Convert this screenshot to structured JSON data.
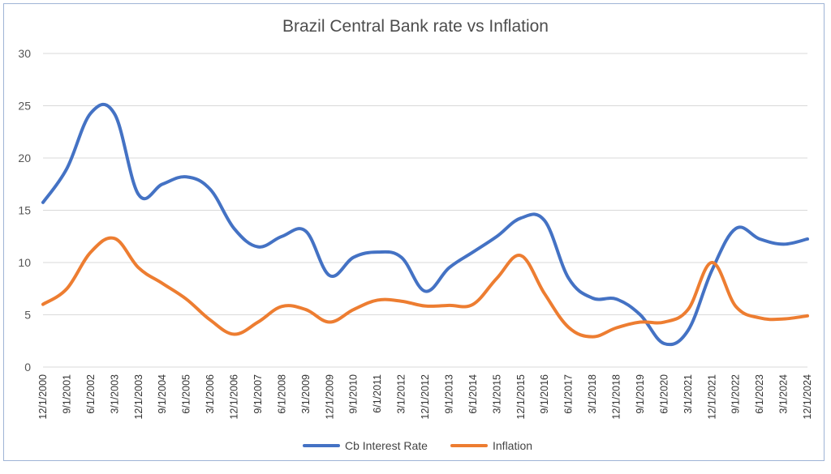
{
  "chart_data": {
    "type": "line",
    "title": "Brazil Central Bank rate vs Inflation",
    "xlabel": "",
    "ylabel": "",
    "ylim": [
      0,
      30
    ],
    "yticks": [
      0,
      5,
      10,
      15,
      20,
      25,
      30
    ],
    "grid": "horizontal",
    "legend": "bottom",
    "categories": [
      "12/1/2000",
      "9/1/2001",
      "6/1/2002",
      "3/1/2003",
      "12/1/2003",
      "9/1/2004",
      "6/1/2005",
      "3/1/2006",
      "12/1/2006",
      "9/1/2007",
      "6/1/2008",
      "3/1/2009",
      "12/1/2009",
      "9/1/2010",
      "6/1/2011",
      "3/1/2012",
      "12/1/2012",
      "9/1/2013",
      "6/1/2014",
      "3/1/2015",
      "12/1/2015",
      "9/1/2016",
      "6/1/2017",
      "3/1/2018",
      "12/1/2018",
      "9/1/2019",
      "6/1/2020",
      "3/1/2021",
      "12/1/2021",
      "9/1/2022",
      "6/1/2023",
      "3/1/2024",
      "12/1/2024"
    ],
    "series": [
      {
        "name": "Cb Interest Rate",
        "color": "#4472c4",
        "values": [
          15.75,
          19.0,
          24.3,
          24.2,
          16.5,
          17.5,
          18.2,
          17.0,
          13.25,
          11.5,
          12.5,
          13.0,
          8.75,
          10.5,
          11.0,
          10.5,
          7.25,
          9.5,
          11.0,
          12.5,
          14.25,
          14.0,
          8.5,
          6.6,
          6.5,
          5.0,
          2.25,
          3.5,
          9.25,
          13.25,
          12.25,
          11.75,
          12.25
        ]
      },
      {
        "name": "Inflation",
        "color": "#ed7d31",
        "values": [
          6.0,
          7.5,
          11.0,
          12.3,
          9.5,
          8.0,
          6.5,
          4.5,
          3.14,
          4.3,
          5.8,
          5.5,
          4.3,
          5.5,
          6.4,
          6.3,
          5.84,
          5.9,
          6.0,
          8.5,
          10.67,
          7.0,
          3.8,
          2.9,
          3.75,
          4.3,
          4.3,
          5.5,
          10.0,
          5.8,
          4.7,
          4.6,
          4.9
        ]
      }
    ]
  }
}
